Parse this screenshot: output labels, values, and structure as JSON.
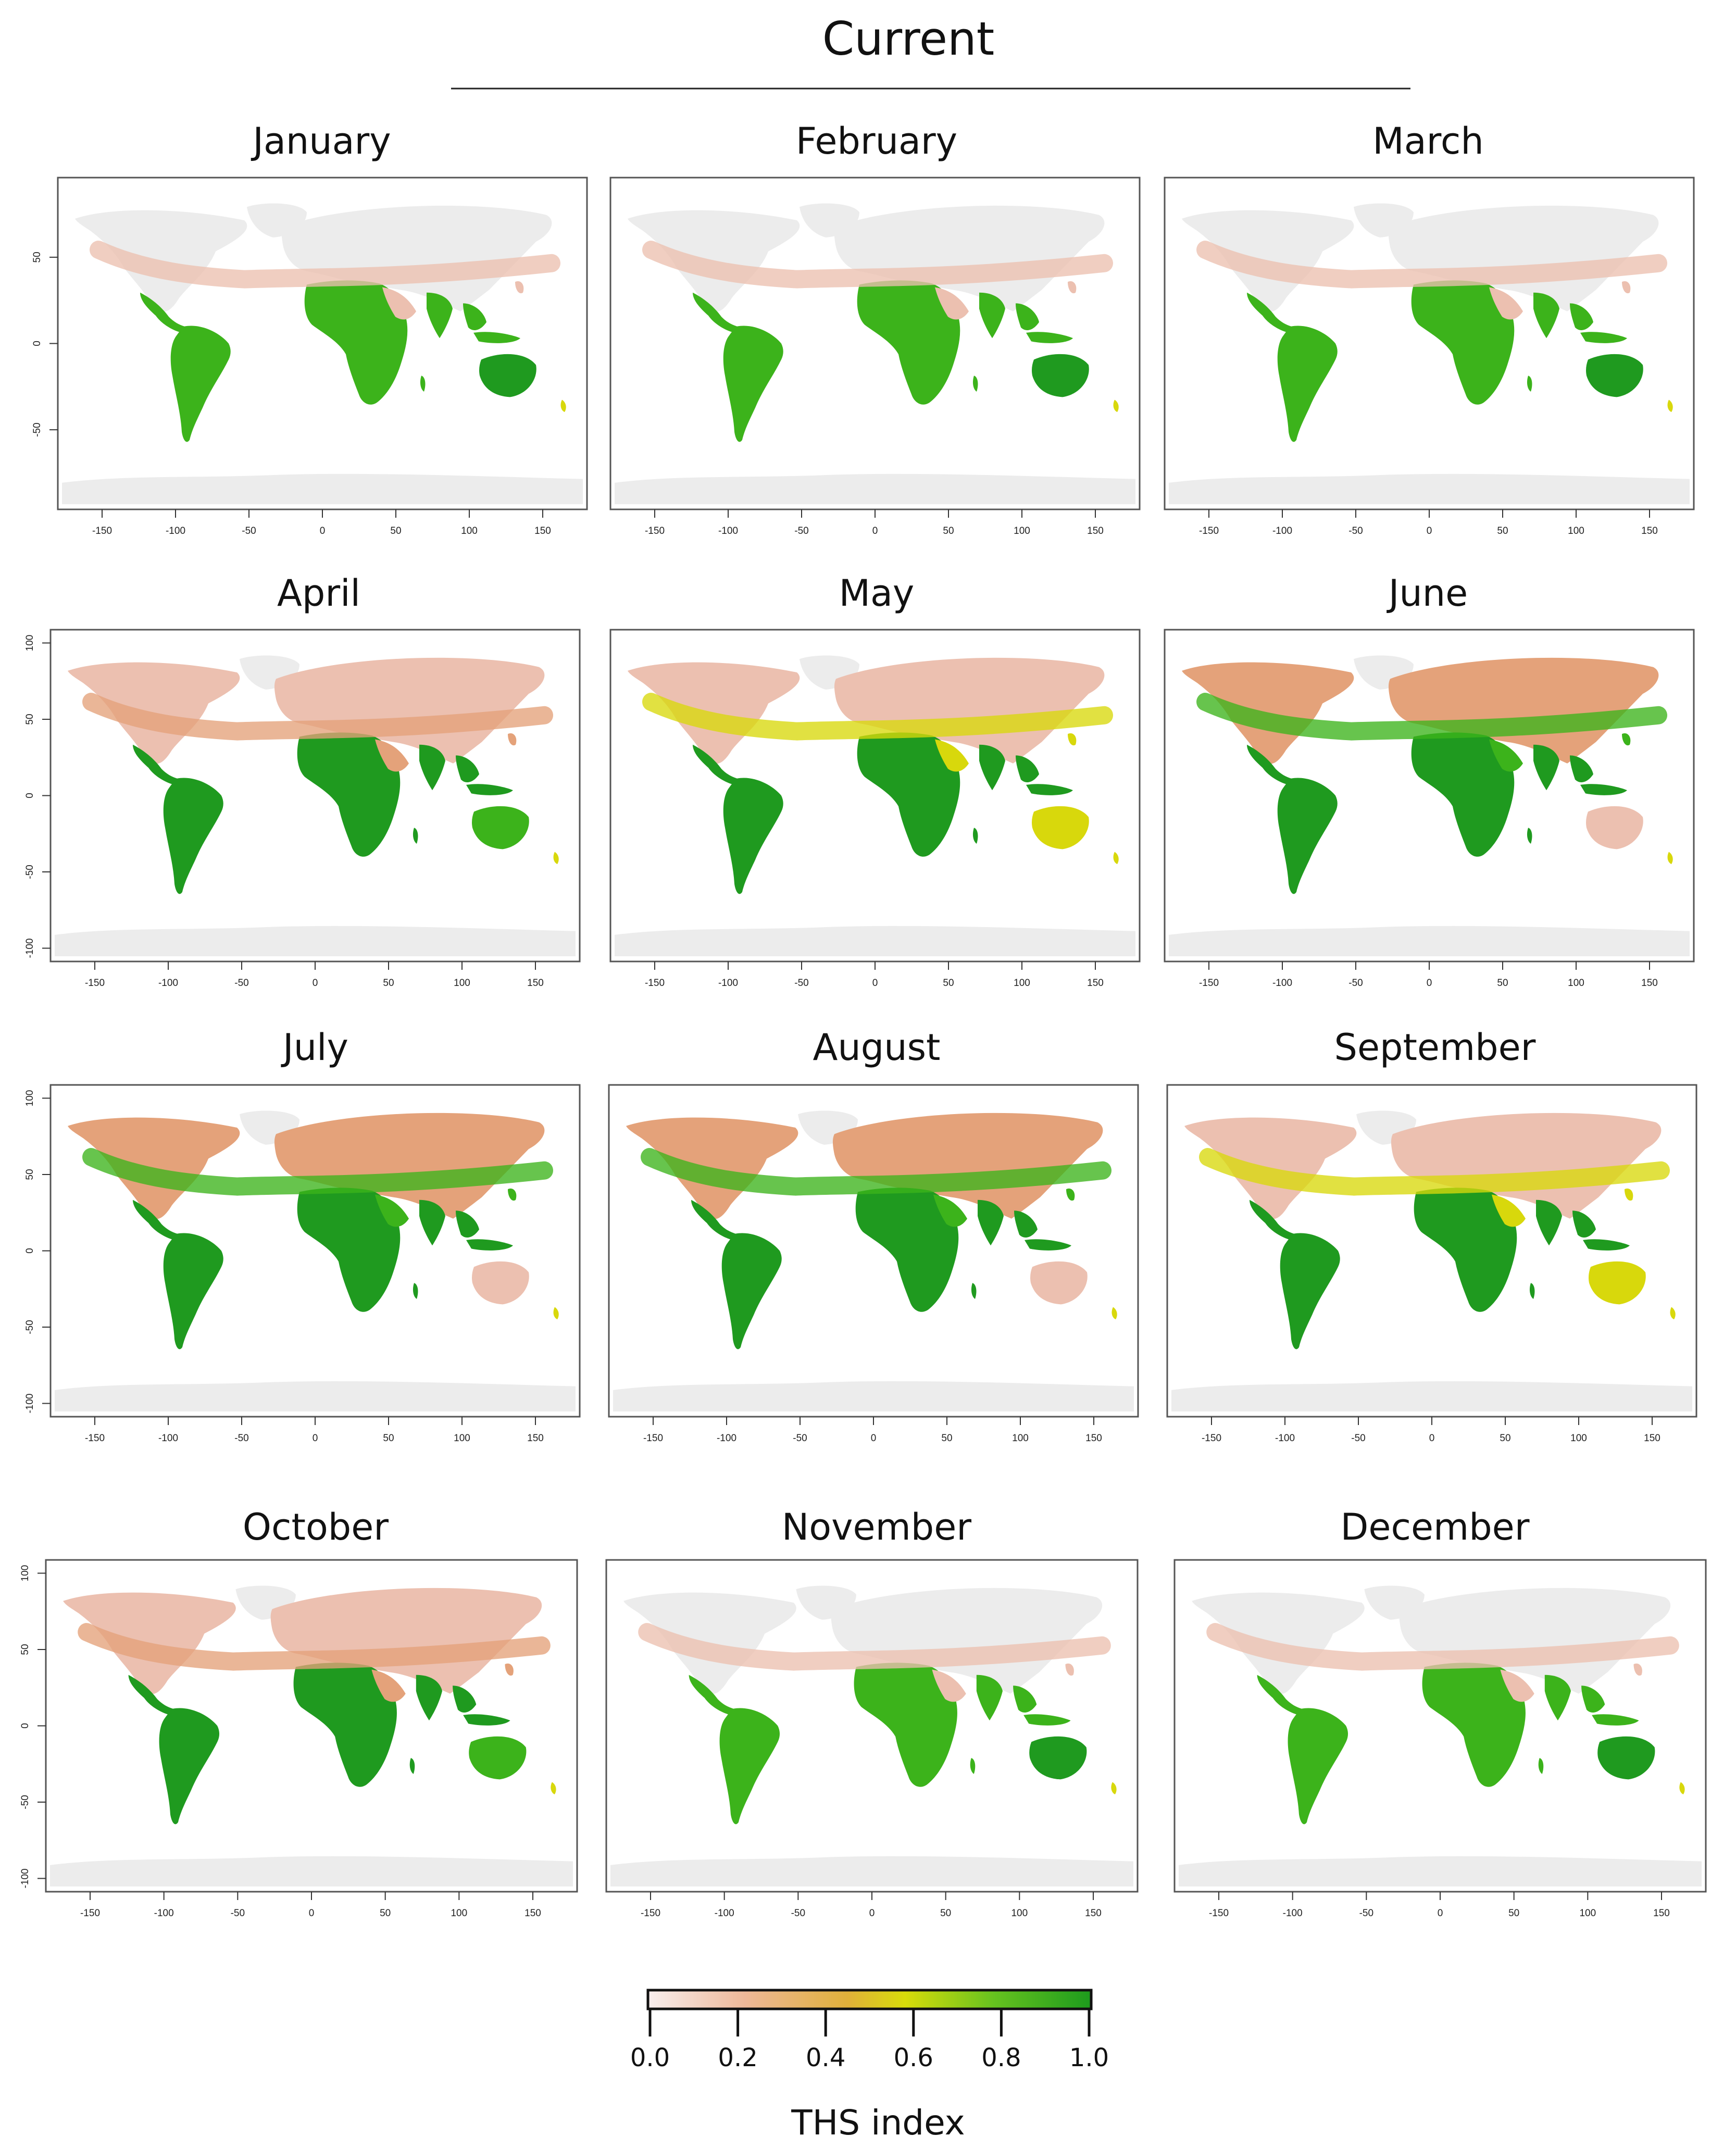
{
  "title": "Current",
  "panels": [
    {
      "month": "January",
      "x_ticks": [
        "-150",
        "-100",
        "-50",
        "0",
        "50",
        "100",
        "150"
      ],
      "y_ticks": [
        "50",
        "0",
        "-50"
      ],
      "season": "south_summer"
    },
    {
      "month": "February",
      "x_ticks": [
        "-150",
        "-100",
        "-50",
        "0",
        "50",
        "100",
        "150"
      ],
      "y_ticks": [],
      "season": "south_summer"
    },
    {
      "month": "March",
      "x_ticks": [
        "-150",
        "-100",
        "-50",
        "0",
        "50",
        "100",
        "150"
      ],
      "y_ticks": [],
      "season": "south_summer"
    },
    {
      "month": "April",
      "x_ticks": [
        "-150",
        "-100",
        "-50",
        "0",
        "50",
        "100",
        "150"
      ],
      "y_ticks": [
        "100",
        "50",
        "0",
        "-50",
        "-100"
      ],
      "season": "transition"
    },
    {
      "month": "May",
      "x_ticks": [
        "-150",
        "-100",
        "-50",
        "0",
        "50",
        "100",
        "150"
      ],
      "y_ticks": [],
      "season": "north_warm"
    },
    {
      "month": "June",
      "x_ticks": [
        "-150",
        "-100",
        "-50",
        "0",
        "50",
        "100",
        "150"
      ],
      "y_ticks": [],
      "season": "north_summer"
    },
    {
      "month": "July",
      "x_ticks": [
        "-150",
        "-100",
        "-50",
        "0",
        "50",
        "100",
        "150"
      ],
      "y_ticks": [
        "100",
        "50",
        "0",
        "-50",
        "-100"
      ],
      "season": "north_summer"
    },
    {
      "month": "August",
      "x_ticks": [
        "-150",
        "-100",
        "-50",
        "0",
        "50",
        "100",
        "150"
      ],
      "y_ticks": [],
      "season": "north_summer"
    },
    {
      "month": "September",
      "x_ticks": [
        "-150",
        "-100",
        "-50",
        "0",
        "50",
        "100",
        "150"
      ],
      "y_ticks": [],
      "season": "north_warm"
    },
    {
      "month": "October",
      "x_ticks": [
        "-150",
        "-100",
        "-50",
        "0",
        "50",
        "100",
        "150"
      ],
      "y_ticks": [
        "100",
        "50",
        "0",
        "-50",
        "-100"
      ],
      "season": "transition"
    },
    {
      "month": "November",
      "x_ticks": [
        "-150",
        "-100",
        "-50",
        "0",
        "50",
        "100",
        "150"
      ],
      "y_ticks": [],
      "season": "south_summer"
    },
    {
      "month": "December",
      "x_ticks": [
        "-150",
        "-100",
        "-50",
        "0",
        "50",
        "100",
        "150"
      ],
      "y_ticks": [],
      "season": "south_summer"
    }
  ],
  "legend": {
    "title": "THS index",
    "ticks": [
      "0.0",
      "0.2",
      "0.4",
      "0.6",
      "0.8",
      "1.0"
    ],
    "colors": [
      "#f7e6e6",
      "#e9a97c",
      "#d9d70a",
      "#5fc11d",
      "#1e9e1e"
    ]
  },
  "map_colors": {
    "none": "#ececec",
    "low": "#ecc0b0",
    "mid_low": "#e4a27a",
    "mid": "#d8d80c",
    "high": "#3cb31b",
    "very_high": "#1f9a1f"
  }
}
